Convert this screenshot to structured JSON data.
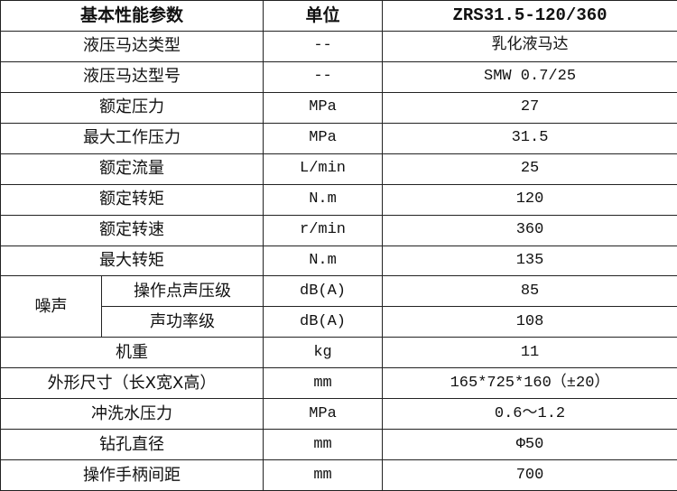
{
  "header": {
    "param": "基本性能参数",
    "unit": "单位",
    "model": "ZRS31.5-120/360"
  },
  "rows": [
    {
      "param": "液压马达类型",
      "unit": "--",
      "value": "乳化液马达"
    },
    {
      "param": "液压马达型号",
      "unit": "--",
      "value": "SMW 0.7/25"
    },
    {
      "param": "额定压力",
      "unit": "MPa",
      "value": "27"
    },
    {
      "param": "最大工作压力",
      "unit": "MPa",
      "value": "31.5"
    },
    {
      "param": "额定流量",
      "unit": "L/min",
      "value": "25"
    },
    {
      "param": "额定转矩",
      "unit": "N.m",
      "value": "120"
    },
    {
      "param": "额定转速",
      "unit": "r/min",
      "value": "360"
    },
    {
      "param": "最大转矩",
      "unit": "N.m",
      "value": "135"
    }
  ],
  "noise": {
    "group": "噪声",
    "items": [
      {
        "param": "操作点声压级",
        "unit": "dB(A)",
        "value": "85"
      },
      {
        "param": "声功率级",
        "unit": "dB(A)",
        "value": "108"
      }
    ]
  },
  "rows2": [
    {
      "param": "机重",
      "unit": "kg",
      "value": "11"
    },
    {
      "param": "外形尺寸（长X宽X高）",
      "unit": "mm",
      "value": "165*725*160（±20）"
    },
    {
      "param": "冲洗水压力",
      "unit": "MPa",
      "value": "0.6～1.2"
    },
    {
      "param": "钻孔直径",
      "unit": "mm",
      "value": "Φ50"
    },
    {
      "param": "操作手柄间距",
      "unit": "mm",
      "value": "700"
    }
  ]
}
